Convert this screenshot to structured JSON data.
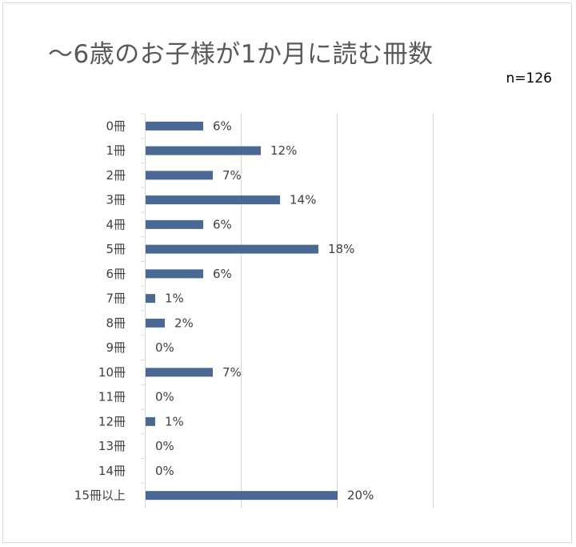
{
  "chart_data": {
    "type": "bar",
    "orientation": "horizontal",
    "title": "～6歳のお子様が1か月に読む冊数",
    "note": "n=126",
    "categories": [
      "0冊",
      "1冊",
      "2冊",
      "3冊",
      "4冊",
      "5冊",
      "6冊",
      "7冊",
      "8冊",
      "9冊",
      "10冊",
      "11冊",
      "12冊",
      "13冊",
      "14冊",
      "15冊以上"
    ],
    "values": [
      6,
      12,
      7,
      14,
      6,
      18,
      6,
      1,
      2,
      0,
      7,
      0,
      1,
      0,
      0,
      20
    ],
    "value_labels": [
      "6%",
      "12%",
      "7%",
      "14%",
      "6%",
      "18%",
      "6%",
      "1%",
      "2%",
      "0%",
      "7%",
      "0%",
      "1%",
      "0%",
      "0%",
      "20%"
    ],
    "xlim": [
      0,
      30
    ],
    "x_gridlines": [
      0,
      10,
      20,
      30
    ],
    "grid": true,
    "bar_color": "#4a6894",
    "grid_color": "#d9d9d9",
    "legend": false
  }
}
